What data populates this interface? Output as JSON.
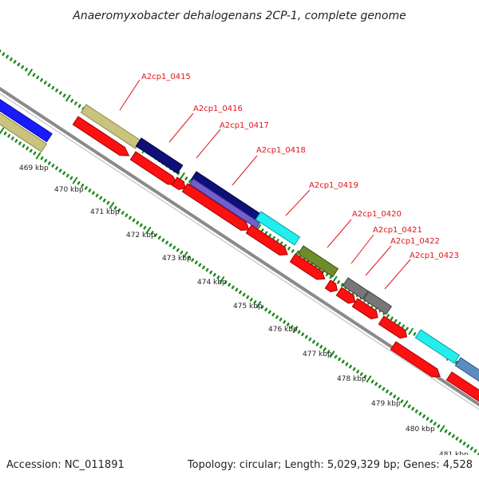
{
  "title": "Anaeromyxobacter dehalogenans 2CP-1, complete genome",
  "footer": {
    "accession": "Accession: NC_011891",
    "topology": "Topology: circular; Length: 5,029,329 bp; Genes: 4,528"
  },
  "tick_labels": [
    "469 kbp",
    "470 kbp",
    "471 kbp",
    "472 kbp",
    "473 kbp",
    "474 kbp",
    "475 kbp",
    "476 kbp",
    "477 kbp",
    "478 kbp",
    "479 kbp",
    "480 kbp",
    "481 kbp"
  ],
  "gene_labels": [
    "A2cp1_0415",
    "A2cp1_0416",
    "A2cp1_0417",
    "A2cp1_0418",
    "A2cp1_0419",
    "A2cp1_0420",
    "A2cp1_0421",
    "A2cp1_0422",
    "A2cp1_0423"
  ],
  "colors": {
    "khaki": "#c8c47e",
    "blue": "#1a1aff",
    "navy": "#0f0f7a",
    "slate": "#7060d0",
    "cyan": "#22eeee",
    "olive": "#6e8c2a",
    "gray": "#777777",
    "steel": "#5b8cc0",
    "red": "#ff1010",
    "backbone": "#8a8a8a",
    "tick_green": "#1a8a1a",
    "label_red": "#e0141b"
  }
}
